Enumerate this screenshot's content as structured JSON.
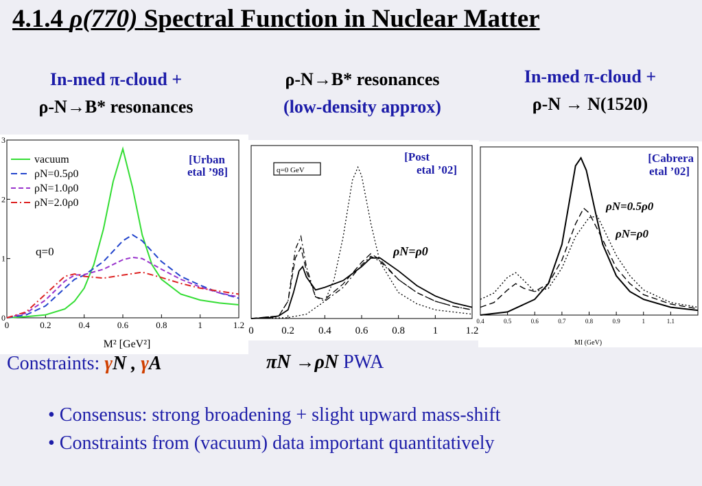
{
  "title": {
    "num": "4.1.4",
    "rho": "ρ",
    "mass": "(770)",
    "rest": "Spectral Function in Nuclear Matter"
  },
  "headers": [
    {
      "line1": "In-med π-cloud +",
      "line2": "ρ-N→B* resonances"
    },
    {
      "line1": "ρ-N→B* resonances",
      "line2": "(low-density approx)"
    },
    {
      "line1": "In-med π-cloud +",
      "line2": "ρ-N → N(1520)"
    }
  ],
  "colors": {
    "vacuum": "#33dd33",
    "rho05": "#2244cc",
    "rho10": "#9933cc",
    "rho20": "#dd2222",
    "text_blue": "#1c1ca8",
    "gamma": "#d04000"
  },
  "chart_data": [
    {
      "type": "line",
      "ref": "[Urban etal ’98]",
      "ref_lines": [
        "[Urban",
        "etal ’98]"
      ],
      "xlabel": "M² [GeV²]",
      "annotation": "q=0",
      "xlim": [
        0,
        1.2
      ],
      "ylim": [
        0,
        3
      ],
      "xticks": [
        "0",
        "0.2",
        "0.4",
        "0.6",
        "0.8",
        "1",
        "1.2"
      ],
      "yticks": [
        "0",
        "1",
        "2",
        "3"
      ],
      "legend": [
        "vacuum",
        "ρN=0.5ρ0",
        "ρN=1.0ρ0",
        "ρN=2.0ρ0"
      ],
      "legend_position": "top-left",
      "series": [
        {
          "name": "vacuum",
          "x": [
            0,
            0.1,
            0.2,
            0.3,
            0.35,
            0.4,
            0.45,
            0.5,
            0.55,
            0.6,
            0.65,
            0.7,
            0.75,
            0.8,
            0.9,
            1.0,
            1.1,
            1.2
          ],
          "y": [
            0,
            0.02,
            0.05,
            0.15,
            0.28,
            0.5,
            0.9,
            1.5,
            2.3,
            2.85,
            2.2,
            1.4,
            0.9,
            0.65,
            0.4,
            0.3,
            0.25,
            0.22
          ]
        },
        {
          "name": "ρN=0.5ρ0",
          "x": [
            0,
            0.1,
            0.2,
            0.3,
            0.35,
            0.4,
            0.5,
            0.6,
            0.65,
            0.7,
            0.8,
            0.9,
            1.0,
            1.1,
            1.2
          ],
          "y": [
            0,
            0.05,
            0.2,
            0.5,
            0.65,
            0.72,
            0.95,
            1.3,
            1.4,
            1.3,
            0.95,
            0.7,
            0.55,
            0.42,
            0.33
          ]
        },
        {
          "name": "ρN=1.0ρ0",
          "x": [
            0,
            0.1,
            0.2,
            0.3,
            0.35,
            0.4,
            0.5,
            0.6,
            0.65,
            0.7,
            0.8,
            0.9,
            1.0,
            1.1,
            1.2
          ],
          "y": [
            0,
            0.08,
            0.3,
            0.62,
            0.72,
            0.73,
            0.82,
            0.98,
            1.02,
            1.0,
            0.82,
            0.65,
            0.52,
            0.42,
            0.35
          ]
        },
        {
          "name": "ρN=2.0ρ0",
          "x": [
            0,
            0.1,
            0.2,
            0.3,
            0.35,
            0.4,
            0.5,
            0.6,
            0.7,
            0.8,
            0.9,
            1.0,
            1.1,
            1.2
          ],
          "y": [
            0,
            0.1,
            0.4,
            0.7,
            0.74,
            0.7,
            0.67,
            0.72,
            0.77,
            0.68,
            0.58,
            0.5,
            0.45,
            0.4
          ]
        }
      ]
    },
    {
      "type": "line",
      "ref": "[Post etal ’02]",
      "ref_lines": [
        "[Post",
        "etal ’02]"
      ],
      "box_label": "q=0 GeV",
      "annotation": "ρN=ρ0",
      "xlim": [
        0,
        1.2
      ],
      "xticks": [
        "0",
        "0.2",
        "0.4",
        "0.6",
        "0.8",
        "1",
        "1.2"
      ],
      "series": [
        {
          "style": "solid",
          "x": [
            0,
            0.1,
            0.15,
            0.2,
            0.23,
            0.26,
            0.28,
            0.3,
            0.35,
            0.4,
            0.5,
            0.6,
            0.65,
            0.7,
            0.8,
            0.9,
            1.0,
            1.1,
            1.2
          ],
          "y": [
            0,
            0.01,
            0.03,
            0.1,
            0.3,
            0.55,
            0.6,
            0.48,
            0.33,
            0.36,
            0.44,
            0.6,
            0.7,
            0.7,
            0.55,
            0.38,
            0.26,
            0.18,
            0.13
          ]
        },
        {
          "style": "dash",
          "x": [
            0,
            0.15,
            0.2,
            0.24,
            0.27,
            0.3,
            0.35,
            0.4,
            0.5,
            0.6,
            0.65,
            0.7,
            0.8,
            0.9,
            1.0,
            1.1,
            1.2
          ],
          "y": [
            0,
            0.03,
            0.2,
            0.7,
            0.82,
            0.55,
            0.25,
            0.22,
            0.4,
            0.65,
            0.75,
            0.68,
            0.45,
            0.3,
            0.2,
            0.14,
            0.1
          ]
        },
        {
          "style": "dashdot",
          "x": [
            0,
            0.15,
            0.2,
            0.24,
            0.27,
            0.3,
            0.35,
            0.4,
            0.5,
            0.6,
            0.65,
            0.7,
            0.8,
            0.9,
            1.0,
            1.1,
            1.2
          ],
          "y": [
            0,
            0.03,
            0.2,
            0.8,
            0.95,
            0.6,
            0.25,
            0.2,
            0.36,
            0.62,
            0.72,
            0.66,
            0.45,
            0.3,
            0.2,
            0.14,
            0.1
          ]
        },
        {
          "style": "dot",
          "x": [
            0,
            0.2,
            0.3,
            0.4,
            0.45,
            0.5,
            0.55,
            0.58,
            0.6,
            0.65,
            0.7,
            0.8,
            0.9,
            1.0,
            1.2
          ],
          "y": [
            0,
            0.01,
            0.05,
            0.2,
            0.45,
            0.95,
            1.6,
            1.75,
            1.65,
            1.1,
            0.65,
            0.3,
            0.17,
            0.1,
            0.05
          ]
        }
      ]
    },
    {
      "type": "line",
      "ref": "[Cabrera etal ’02]",
      "ref_lines": [
        "[Cabrera",
        "etal ’02]"
      ],
      "xlabel": "MI (GeV)",
      "annotations": [
        "ρN=0.5ρ0",
        "ρN=ρ0"
      ],
      "xlim": [
        0.4,
        1.2
      ],
      "xticks": [
        "0.4",
        "0.5",
        "0.6",
        "0.7",
        "0.8",
        "0.9",
        "1",
        "1.1"
      ],
      "series": [
        {
          "style": "solid",
          "x": [
            0.4,
            0.5,
            0.6,
            0.65,
            0.7,
            0.73,
            0.75,
            0.77,
            0.79,
            0.82,
            0.85,
            0.9,
            0.95,
            1.0,
            1.1,
            1.2
          ],
          "y": [
            0.0,
            0.02,
            0.1,
            0.2,
            0.45,
            0.75,
            0.95,
            1.0,
            0.92,
            0.68,
            0.45,
            0.25,
            0.15,
            0.1,
            0.05,
            0.03
          ]
        },
        {
          "style": "dash",
          "x": [
            0.4,
            0.45,
            0.5,
            0.53,
            0.56,
            0.6,
            0.65,
            0.7,
            0.75,
            0.78,
            0.8,
            0.85,
            0.9,
            0.95,
            1.0,
            1.1,
            1.2
          ],
          "y": [
            0.05,
            0.08,
            0.16,
            0.2,
            0.17,
            0.15,
            0.2,
            0.35,
            0.58,
            0.68,
            0.65,
            0.48,
            0.3,
            0.2,
            0.13,
            0.07,
            0.04
          ]
        },
        {
          "style": "dot",
          "x": [
            0.4,
            0.45,
            0.5,
            0.53,
            0.56,
            0.6,
            0.65,
            0.7,
            0.75,
            0.8,
            0.83,
            0.85,
            0.9,
            0.95,
            1.0,
            1.1,
            1.2
          ],
          "y": [
            0.1,
            0.14,
            0.24,
            0.27,
            0.22,
            0.15,
            0.17,
            0.3,
            0.5,
            0.62,
            0.63,
            0.56,
            0.38,
            0.25,
            0.16,
            0.08,
            0.05
          ]
        }
      ]
    }
  ],
  "constraints": {
    "label": "Constraints:",
    "g1": "γ",
    "n": "N",
    "sep": " , ",
    "g2": "γ",
    "a": "A"
  },
  "pwa": {
    "reaction": "πN →ρN",
    "label": "PWA"
  },
  "bullets": [
    "• Consensus:  strong broadening + slight upward mass-shift",
    "• Constraints from (vacuum) data important quantitatively"
  ]
}
